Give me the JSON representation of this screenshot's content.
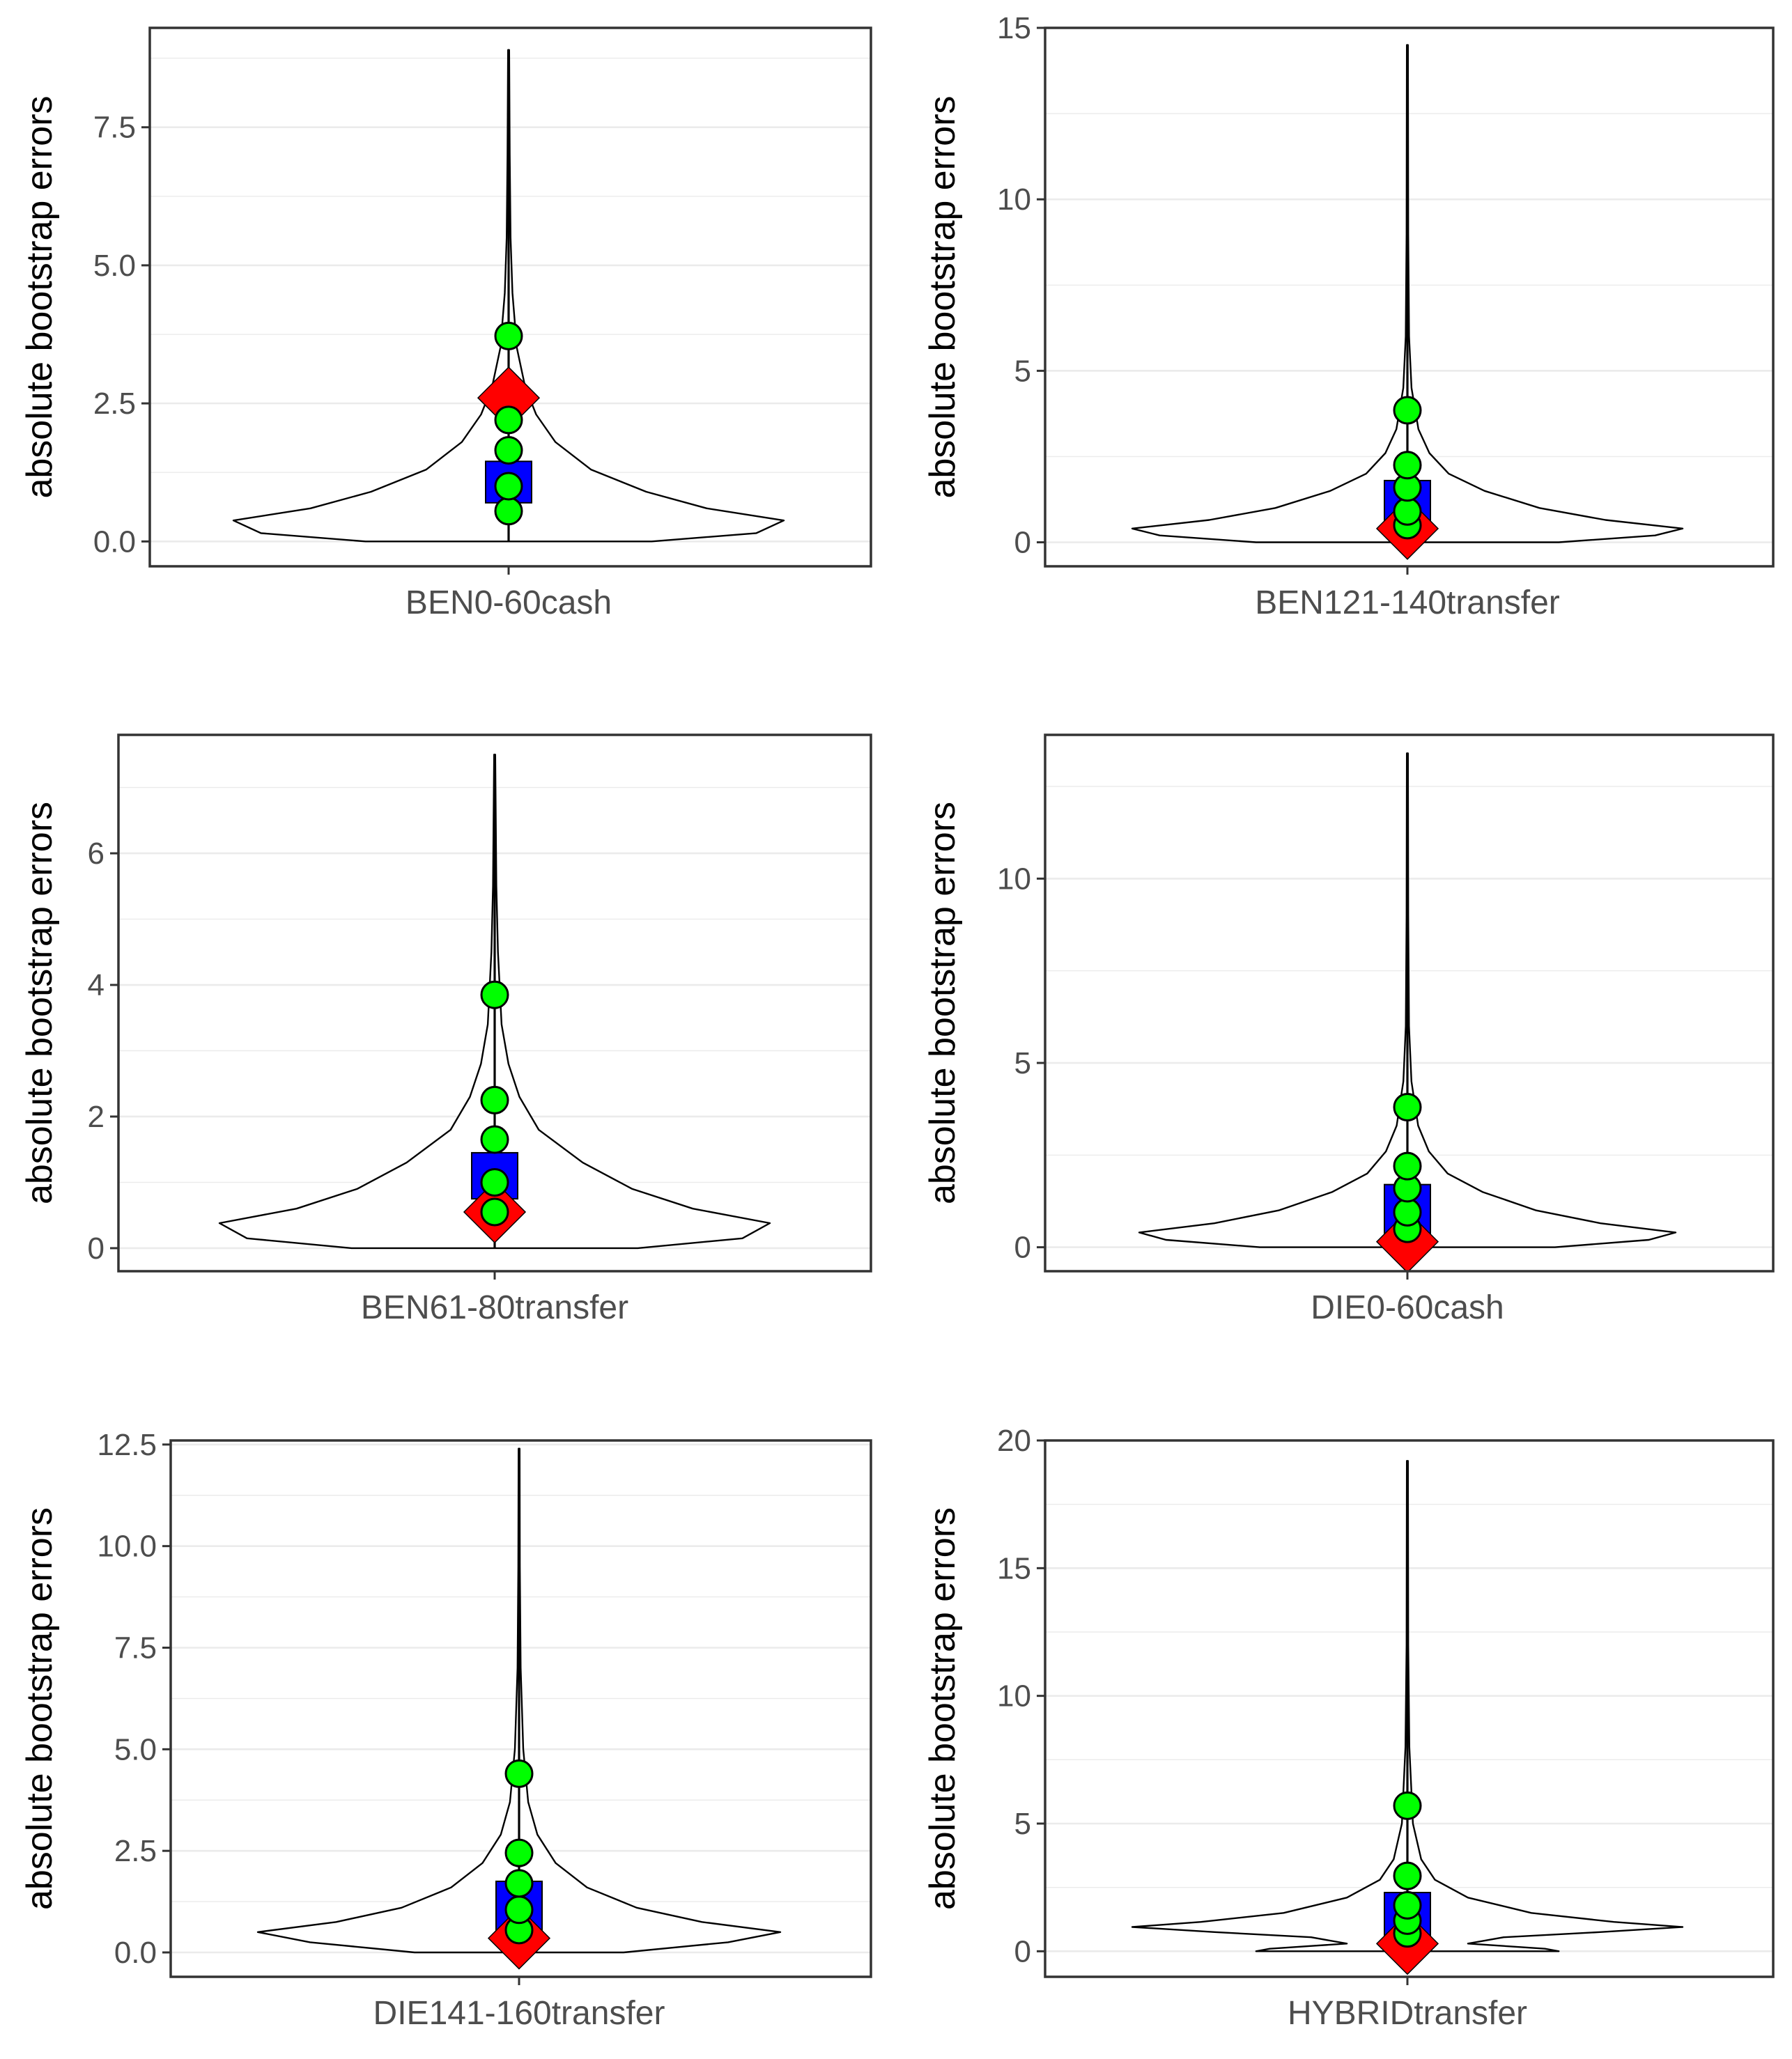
{
  "colors": {
    "panel_border": "#333333",
    "grid": "#ebebeb",
    "violin_stroke": "#000000",
    "whisker": "#000000",
    "box_fill": "#0000ff",
    "point_fill": "#00ff00",
    "diamond_fill": "#ff0000",
    "tick_text": "#4d4d4d",
    "label_text": "#000000"
  },
  "chart_data": [
    {
      "type": "violin",
      "category": "BEN0-60cash",
      "ylabel": "absolute bootstrap errors",
      "xlabel": "",
      "ylim": [
        -0.45,
        9.3
      ],
      "yticks": [
        0.0,
        2.5,
        5.0,
        7.5
      ],
      "ytick_labels": [
        "0.0",
        "2.5",
        "5.0",
        "7.5"
      ],
      "grid": true,
      "whisker": [
        0.0,
        8.9
      ],
      "box": [
        0.7,
        1.45
      ],
      "points": [
        0.55,
        1.0,
        1.65,
        2.2,
        3.72
      ],
      "diamond": 2.6,
      "violin_profile": [
        [
          0.0,
          0.52
        ],
        [
          0.15,
          0.9
        ],
        [
          0.38,
          1.0
        ],
        [
          0.6,
          0.72
        ],
        [
          0.9,
          0.5
        ],
        [
          1.3,
          0.3
        ],
        [
          1.8,
          0.17
        ],
        [
          2.3,
          0.1
        ],
        [
          2.8,
          0.06
        ],
        [
          3.5,
          0.03
        ],
        [
          4.5,
          0.014
        ],
        [
          5.5,
          0.007
        ],
        [
          7.0,
          0.004
        ],
        [
          8.9,
          0.002
        ]
      ]
    },
    {
      "type": "violin",
      "category": "BEN121-140transfer",
      "ylabel": "absolute bootstrap errors",
      "xlabel": "",
      "ylim": [
        -0.7,
        15.0
      ],
      "yticks": [
        0,
        5,
        10,
        15
      ],
      "ytick_labels": [
        "0",
        "5",
        "10",
        "15"
      ],
      "grid": true,
      "whisker": [
        0.0,
        14.5
      ],
      "box": [
        0.35,
        1.8
      ],
      "points": [
        0.5,
        0.9,
        1.6,
        2.25,
        3.85
      ],
      "diamond": 0.4,
      "violin_profile": [
        [
          0.0,
          0.55
        ],
        [
          0.2,
          0.9
        ],
        [
          0.4,
          1.0
        ],
        [
          0.65,
          0.72
        ],
        [
          1.0,
          0.48
        ],
        [
          1.5,
          0.28
        ],
        [
          2.0,
          0.15
        ],
        [
          2.6,
          0.08
        ],
        [
          3.3,
          0.04
        ],
        [
          4.5,
          0.015
        ],
        [
          6.0,
          0.006
        ],
        [
          9.0,
          0.003
        ],
        [
          14.5,
          0.002
        ]
      ]
    },
    {
      "type": "violin",
      "category": "BEN61-80transfer",
      "ylabel": "absolute bootstrap errors",
      "xlabel": "",
      "ylim": [
        -0.35,
        7.8
      ],
      "yticks": [
        0,
        2,
        4,
        6
      ],
      "ytick_labels": [
        "0",
        "2",
        "4",
        "6"
      ],
      "grid": true,
      "whisker": [
        0.0,
        7.5
      ],
      "box": [
        0.75,
        1.45
      ],
      "points": [
        0.55,
        1.0,
        1.65,
        2.25,
        3.85
      ],
      "diamond": 0.55,
      "violin_profile": [
        [
          0.0,
          0.52
        ],
        [
          0.15,
          0.9
        ],
        [
          0.38,
          1.0
        ],
        [
          0.6,
          0.72
        ],
        [
          0.9,
          0.5
        ],
        [
          1.3,
          0.32
        ],
        [
          1.8,
          0.16
        ],
        [
          2.3,
          0.09
        ],
        [
          2.8,
          0.05
        ],
        [
          3.4,
          0.025
        ],
        [
          4.5,
          0.012
        ],
        [
          5.5,
          0.006
        ],
        [
          7.5,
          0.002
        ]
      ]
    },
    {
      "type": "violin",
      "category": "DIE0-60cash",
      "ylabel": "absolute bootstrap errors",
      "xlabel": "",
      "ylim": [
        -0.65,
        13.9
      ],
      "yticks": [
        0,
        5,
        10
      ],
      "ytick_labels": [
        "0",
        "5",
        "10"
      ],
      "grid": true,
      "whisker": [
        0.0,
        13.4
      ],
      "box": [
        0.35,
        1.7
      ],
      "points": [
        0.5,
        0.95,
        1.6,
        2.2,
        3.8
      ],
      "diamond": 0.15,
      "violin_profile": [
        [
          0.0,
          0.55
        ],
        [
          0.2,
          0.9
        ],
        [
          0.4,
          1.0
        ],
        [
          0.65,
          0.72
        ],
        [
          1.0,
          0.48
        ],
        [
          1.5,
          0.28
        ],
        [
          2.0,
          0.15
        ],
        [
          2.6,
          0.08
        ],
        [
          3.3,
          0.04
        ],
        [
          4.5,
          0.015
        ],
        [
          6.0,
          0.006
        ],
        [
          9.0,
          0.003
        ],
        [
          13.4,
          0.002
        ]
      ]
    },
    {
      "type": "violin",
      "category": "DIE141-160transfer",
      "ylabel": "absolute bootstrap errors",
      "xlabel": "",
      "ylim": [
        -0.6,
        12.6
      ],
      "yticks": [
        0.0,
        2.5,
        5.0,
        7.5,
        10.0,
        12.5
      ],
      "ytick_labels": [
        "0.0",
        "2.5",
        "5.0",
        "7.5",
        "10.0",
        "12.5"
      ],
      "grid": true,
      "whisker": [
        0.0,
        12.4
      ],
      "box": [
        0.55,
        1.75
      ],
      "points": [
        0.55,
        1.05,
        1.7,
        2.45,
        4.4
      ],
      "diamond": 0.35,
      "violin_profile": [
        [
          0.0,
          0.4
        ],
        [
          0.25,
          0.8
        ],
        [
          0.5,
          1.0
        ],
        [
          0.75,
          0.7
        ],
        [
          1.1,
          0.45
        ],
        [
          1.6,
          0.26
        ],
        [
          2.2,
          0.14
        ],
        [
          2.9,
          0.07
        ],
        [
          3.7,
          0.035
        ],
        [
          5.0,
          0.016
        ],
        [
          7.0,
          0.006
        ],
        [
          9.5,
          0.003
        ],
        [
          12.4,
          0.002
        ]
      ]
    },
    {
      "type": "violin",
      "category": "HYBRIDtransfer",
      "ylabel": "absolute bootstrap errors",
      "xlabel": "",
      "ylim": [
        -1.0,
        20.0
      ],
      "yticks": [
        0,
        5,
        10,
        15,
        20
      ],
      "ytick_labels": [
        "0",
        "5",
        "10",
        "15",
        "20"
      ],
      "grid": true,
      "whisker": [
        0.0,
        19.2
      ],
      "box": [
        0.4,
        2.3
      ],
      "points": [
        0.7,
        1.2,
        1.8,
        2.95,
        5.7
      ],
      "diamond": 0.3,
      "violin_profile": [
        [
          0.0,
          0.55
        ],
        [
          0.1,
          0.5
        ],
        [
          0.3,
          0.22
        ],
        [
          0.55,
          0.35
        ],
        [
          0.75,
          0.7
        ],
        [
          0.95,
          1.0
        ],
        [
          1.15,
          0.75
        ],
        [
          1.5,
          0.45
        ],
        [
          2.1,
          0.22
        ],
        [
          2.8,
          0.1
        ],
        [
          3.6,
          0.05
        ],
        [
          5.0,
          0.02
        ],
        [
          8.0,
          0.007
        ],
        [
          12.0,
          0.003
        ],
        [
          19.2,
          0.002
        ]
      ]
    }
  ]
}
